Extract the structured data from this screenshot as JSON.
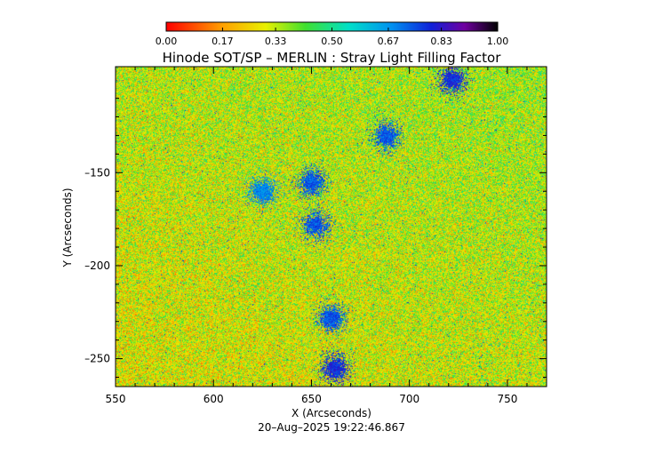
{
  "chart_data": {
    "type": "heatmap",
    "title": "Hinode SOT/SP – MERLIN : Stray Light Filling Factor",
    "xlabel": "X (Arcseconds)",
    "ylabel": "Y (Arcseconds)",
    "timestamp": "20–Aug–2025 19:22:46.867",
    "xlim": [
      550,
      770
    ],
    "ylim": [
      -265,
      -93
    ],
    "x_ticks": [
      550,
      600,
      650,
      700,
      750
    ],
    "x_tick_labels": [
      "550",
      "600",
      "650",
      "700",
      "750"
    ],
    "y_ticks": [
      -150,
      -200,
      -250
    ],
    "y_tick_labels": [
      "–150",
      "–200",
      "–250"
    ],
    "colorbar": {
      "range": [
        0.0,
        1.0
      ],
      "ticks": [
        0.0,
        0.17,
        0.33,
        0.5,
        0.67,
        0.83,
        1.0
      ],
      "tick_labels": [
        "0.00",
        "0.17",
        "0.33",
        "0.50",
        "0.67",
        "0.83",
        "1.00"
      ],
      "colormap": "rainbow (red → yellow → green → cyan → blue → violet → black)"
    },
    "dominant_value_range": [
      0.1,
      0.55
    ],
    "high_value_features": [
      {
        "x": 650,
        "y": -155,
        "value": 0.8
      },
      {
        "x": 652,
        "y": -178,
        "value": 0.8
      },
      {
        "x": 660,
        "y": -228,
        "value": 0.8
      },
      {
        "x": 662,
        "y": -255,
        "value": 0.85
      },
      {
        "x": 688,
        "y": -130,
        "value": 0.8
      },
      {
        "x": 722,
        "y": -100,
        "value": 0.85
      },
      {
        "x": 625,
        "y": -160,
        "value": 0.75
      }
    ],
    "grid": false,
    "legend": "colorbar top"
  },
  "colors": {
    "background": "#ffffff",
    "axes": "#000000",
    "text": "#000000"
  }
}
